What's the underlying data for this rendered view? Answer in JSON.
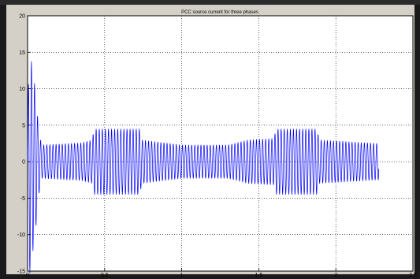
{
  "chart_data": {
    "type": "line",
    "title": "PCC source current for three phases",
    "xlabel": "",
    "ylabel": "",
    "xlim": [
      0,
      2.5
    ],
    "ylim": [
      -15,
      20
    ],
    "x_ticks": [
      "0",
      "0.5",
      "1",
      "1.5",
      "2",
      "2.5"
    ],
    "y_ticks": [
      "20",
      "15",
      "10",
      "5",
      "0",
      "-5",
      "-10",
      "-15"
    ],
    "x_tick_values": [
      0,
      0.5,
      1,
      1.5,
      2,
      2.5
    ],
    "y_tick_values": [
      20,
      15,
      10,
      5,
      0,
      -5,
      -10,
      -15
    ],
    "grid": true,
    "line_color": "#0000ff",
    "signal_end_x": 2.28,
    "frequency_hz": 50,
    "envelope": [
      {
        "x": 0.0,
        "amp": 4
      },
      {
        "x": 0.01,
        "amp": 16
      },
      {
        "x": 0.05,
        "amp": 10
      },
      {
        "x": 0.07,
        "amp": 5
      },
      {
        "x": 0.09,
        "amp": 2.3
      },
      {
        "x": 0.35,
        "amp": 2.6
      },
      {
        "x": 0.42,
        "amp": 3.0
      },
      {
        "x": 0.43,
        "amp": 4.5
      },
      {
        "x": 0.73,
        "amp": 4.5
      },
      {
        "x": 0.74,
        "amp": 3.0
      },
      {
        "x": 1.0,
        "amp": 2.3
      },
      {
        "x": 1.3,
        "amp": 2.3
      },
      {
        "x": 1.43,
        "amp": 3.0
      },
      {
        "x": 1.6,
        "amp": 3.2
      },
      {
        "x": 1.61,
        "amp": 4.5
      },
      {
        "x": 1.88,
        "amp": 4.5
      },
      {
        "x": 1.89,
        "amp": 3.0
      },
      {
        "x": 2.28,
        "amp": 2.5
      }
    ]
  }
}
